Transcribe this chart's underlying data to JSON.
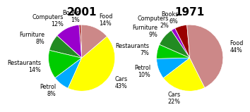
{
  "chart2001": {
    "title": "2001",
    "labels": [
      "Books\n1%",
      "Computers\n12%",
      "Furniture\n8%",
      "Restaurants\n14%",
      "Petrol\n8%",
      "Cars\n43%",
      "Food\n14%"
    ],
    "values": [
      1,
      12,
      8,
      14,
      8,
      43,
      14
    ],
    "colors": [
      "#990000",
      "#9900CC",
      "#228B22",
      "#00CC00",
      "#00AAFF",
      "#FFFF00",
      "#CC8888"
    ],
    "startangle": 91
  },
  "chart1971": {
    "title": "1971",
    "labels": [
      "Books\n6%",
      "Computers\n2%",
      "Furniture\n9%",
      "Restaurants\n7%",
      "Petrol\n10%",
      "Cars\n22%",
      "Food\n44%"
    ],
    "values": [
      6,
      2,
      9,
      7,
      10,
      22,
      44
    ],
    "colors": [
      "#990000",
      "#9900CC",
      "#228B22",
      "#00CC00",
      "#00AAFF",
      "#FFFF00",
      "#CC8888"
    ],
    "startangle": 95
  },
  "title_fontsize": 11,
  "label_fontsize": 5.8,
  "pct_fontsize": 5.8,
  "background_color": "#ffffff"
}
